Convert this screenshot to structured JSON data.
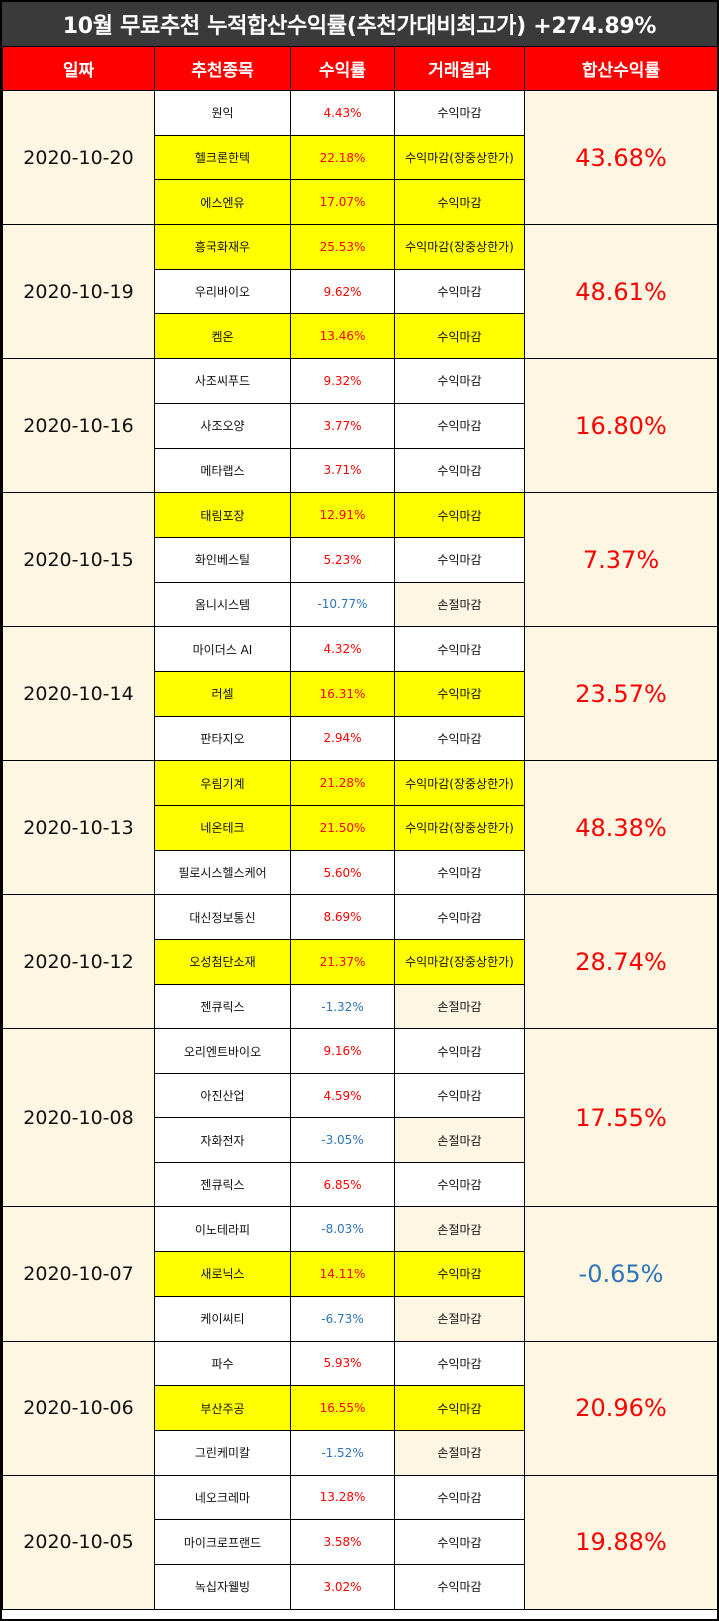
{
  "title": "10월 무료추천 누적합산수익률(추천가대비최고가) +274.89%",
  "headers": [
    "일짜",
    "추천종목",
    "수익률",
    "거래결과",
    "합산수익률"
  ],
  "colors": {
    "header_bg": "#ff0000",
    "highlight": "#ffff00",
    "positive": "#ff0000",
    "negative": "#2e75b6",
    "cream": "#fdf6e3"
  },
  "groups": [
    {
      "date": "2020-10-20",
      "total": "43.68%",
      "total_sign": "pos",
      "rows": [
        {
          "name": "원익",
          "pct": "4.43%",
          "sign": "pos",
          "result": "수익마감",
          "hl": false,
          "res_red": false
        },
        {
          "name": "헬크론한텍",
          "pct": "22.18%",
          "sign": "pos",
          "result": "수익마감(장중상한가)",
          "hl": true,
          "res_red": true
        },
        {
          "name": "에스엔유",
          "pct": "17.07%",
          "sign": "pos",
          "result": "수익마감",
          "hl": true,
          "res_red": false
        }
      ]
    },
    {
      "date": "2020-10-19",
      "total": "48.61%",
      "total_sign": "pos",
      "rows": [
        {
          "name": "흥국화재우",
          "pct": "25.53%",
          "sign": "pos",
          "result": "수익마감(장중상한가)",
          "hl": true,
          "res_red": true
        },
        {
          "name": "우리바이오",
          "pct": "9.62%",
          "sign": "pos",
          "result": "수익마감",
          "hl": false,
          "res_red": false
        },
        {
          "name": "켐온",
          "pct": "13.46%",
          "sign": "pos",
          "result": "수익마감",
          "hl": true,
          "res_red": false
        }
      ]
    },
    {
      "date": "2020-10-16",
      "total": "16.80%",
      "total_sign": "pos",
      "rows": [
        {
          "name": "사조씨푸드",
          "pct": "9.32%",
          "sign": "pos",
          "result": "수익마감",
          "hl": false,
          "res_red": false
        },
        {
          "name": "사조오양",
          "pct": "3.77%",
          "sign": "pos",
          "result": "수익마감",
          "hl": false,
          "res_red": false
        },
        {
          "name": "메타랩스",
          "pct": "3.71%",
          "sign": "pos",
          "result": "수익마감",
          "hl": false,
          "res_red": false
        }
      ]
    },
    {
      "date": "2020-10-15",
      "total": "7.37%",
      "total_sign": "pos",
      "rows": [
        {
          "name": "태림포장",
          "pct": "12.91%",
          "sign": "pos",
          "result": "수익마감",
          "hl": true,
          "res_red": false
        },
        {
          "name": "화인베스틸",
          "pct": "5.23%",
          "sign": "pos",
          "result": "수익마감",
          "hl": false,
          "res_red": false
        },
        {
          "name": "옴니시스템",
          "pct": "-10.77%",
          "sign": "neg",
          "result": "손절마감",
          "hl": false,
          "res_red": false
        }
      ]
    },
    {
      "date": "2020-10-14",
      "total": "23.57%",
      "total_sign": "pos",
      "rows": [
        {
          "name": "마이더스 AI",
          "pct": "4.32%",
          "sign": "pos",
          "result": "수익마감",
          "hl": false,
          "res_red": false
        },
        {
          "name": "러셀",
          "pct": "16.31%",
          "sign": "pos",
          "result": "수익마감",
          "hl": true,
          "res_red": false
        },
        {
          "name": "판타지오",
          "pct": "2.94%",
          "sign": "pos",
          "result": "수익마감",
          "hl": false,
          "res_red": false
        }
      ]
    },
    {
      "date": "2020-10-13",
      "total": "48.38%",
      "total_sign": "pos",
      "rows": [
        {
          "name": "우림기계",
          "pct": "21.28%",
          "sign": "pos",
          "result": "수익마감(장중상한가)",
          "hl": true,
          "res_red": true
        },
        {
          "name": "네온테크",
          "pct": "21.50%",
          "sign": "pos",
          "result": "수익마감(장중상한가)",
          "hl": true,
          "res_red": true
        },
        {
          "name": "필로시스헬스케어",
          "pct": "5.60%",
          "sign": "pos",
          "result": "수익마감",
          "hl": false,
          "res_red": false
        }
      ]
    },
    {
      "date": "2020-10-12",
      "total": "28.74%",
      "total_sign": "pos",
      "rows": [
        {
          "name": "대신정보통신",
          "pct": "8.69%",
          "sign": "pos",
          "result": "수익마감",
          "hl": false,
          "res_red": false
        },
        {
          "name": "오성첨단소재",
          "pct": "21.37%",
          "sign": "pos",
          "result": "수익마감(장중상한가)",
          "hl": true,
          "res_red": true
        },
        {
          "name": "젠큐릭스",
          "pct": "-1.32%",
          "sign": "neg",
          "result": "손절마감",
          "hl": false,
          "res_red": false
        }
      ]
    },
    {
      "date": "2020-10-08",
      "total": "17.55%",
      "total_sign": "pos",
      "rows": [
        {
          "name": "오리엔트바이오",
          "pct": "9.16%",
          "sign": "pos",
          "result": "수익마감",
          "hl": false,
          "res_red": false
        },
        {
          "name": "아진산업",
          "pct": "4.59%",
          "sign": "pos",
          "result": "수익마감",
          "hl": false,
          "res_red": false
        },
        {
          "name": "자화전자",
          "pct": "-3.05%",
          "sign": "neg",
          "result": "손절마감",
          "hl": false,
          "res_red": false
        },
        {
          "name": "젠큐릭스",
          "pct": "6.85%",
          "sign": "pos",
          "result": "수익마감",
          "hl": false,
          "res_red": false
        }
      ]
    },
    {
      "date": "2020-10-07",
      "total": "-0.65%",
      "total_sign": "neg",
      "rows": [
        {
          "name": "이노테라피",
          "pct": "-8.03%",
          "sign": "neg",
          "result": "손절마감",
          "hl": false,
          "res_red": false
        },
        {
          "name": "새로닉스",
          "pct": "14.11%",
          "sign": "pos",
          "result": "수익마감",
          "hl": true,
          "res_red": false
        },
        {
          "name": "케이씨티",
          "pct": "-6.73%",
          "sign": "neg",
          "result": "손절마감",
          "hl": false,
          "res_red": false
        }
      ]
    },
    {
      "date": "2020-10-06",
      "total": "20.96%",
      "total_sign": "pos",
      "rows": [
        {
          "name": "파수",
          "pct": "5.93%",
          "sign": "pos",
          "result": "수익마감",
          "hl": false,
          "res_red": false
        },
        {
          "name": "부산주공",
          "pct": "16.55%",
          "sign": "pos",
          "result": "수익마감",
          "hl": true,
          "res_red": false
        },
        {
          "name": "그린케미칼",
          "pct": "-1.52%",
          "sign": "neg",
          "result": "손절마감",
          "hl": false,
          "res_red": false
        }
      ]
    },
    {
      "date": "2020-10-05",
      "total": "19.88%",
      "total_sign": "pos",
      "rows": [
        {
          "name": "네오크레마",
          "pct": "13.28%",
          "sign": "pos",
          "result": "수익마감",
          "hl": false,
          "res_red": false
        },
        {
          "name": "마이크로프랜드",
          "pct": "3.58%",
          "sign": "pos",
          "result": "수익마감",
          "hl": false,
          "res_red": false
        },
        {
          "name": "녹십자웰빙",
          "pct": "3.02%",
          "sign": "pos",
          "result": "수익마감",
          "hl": false,
          "res_red": false
        }
      ]
    }
  ]
}
